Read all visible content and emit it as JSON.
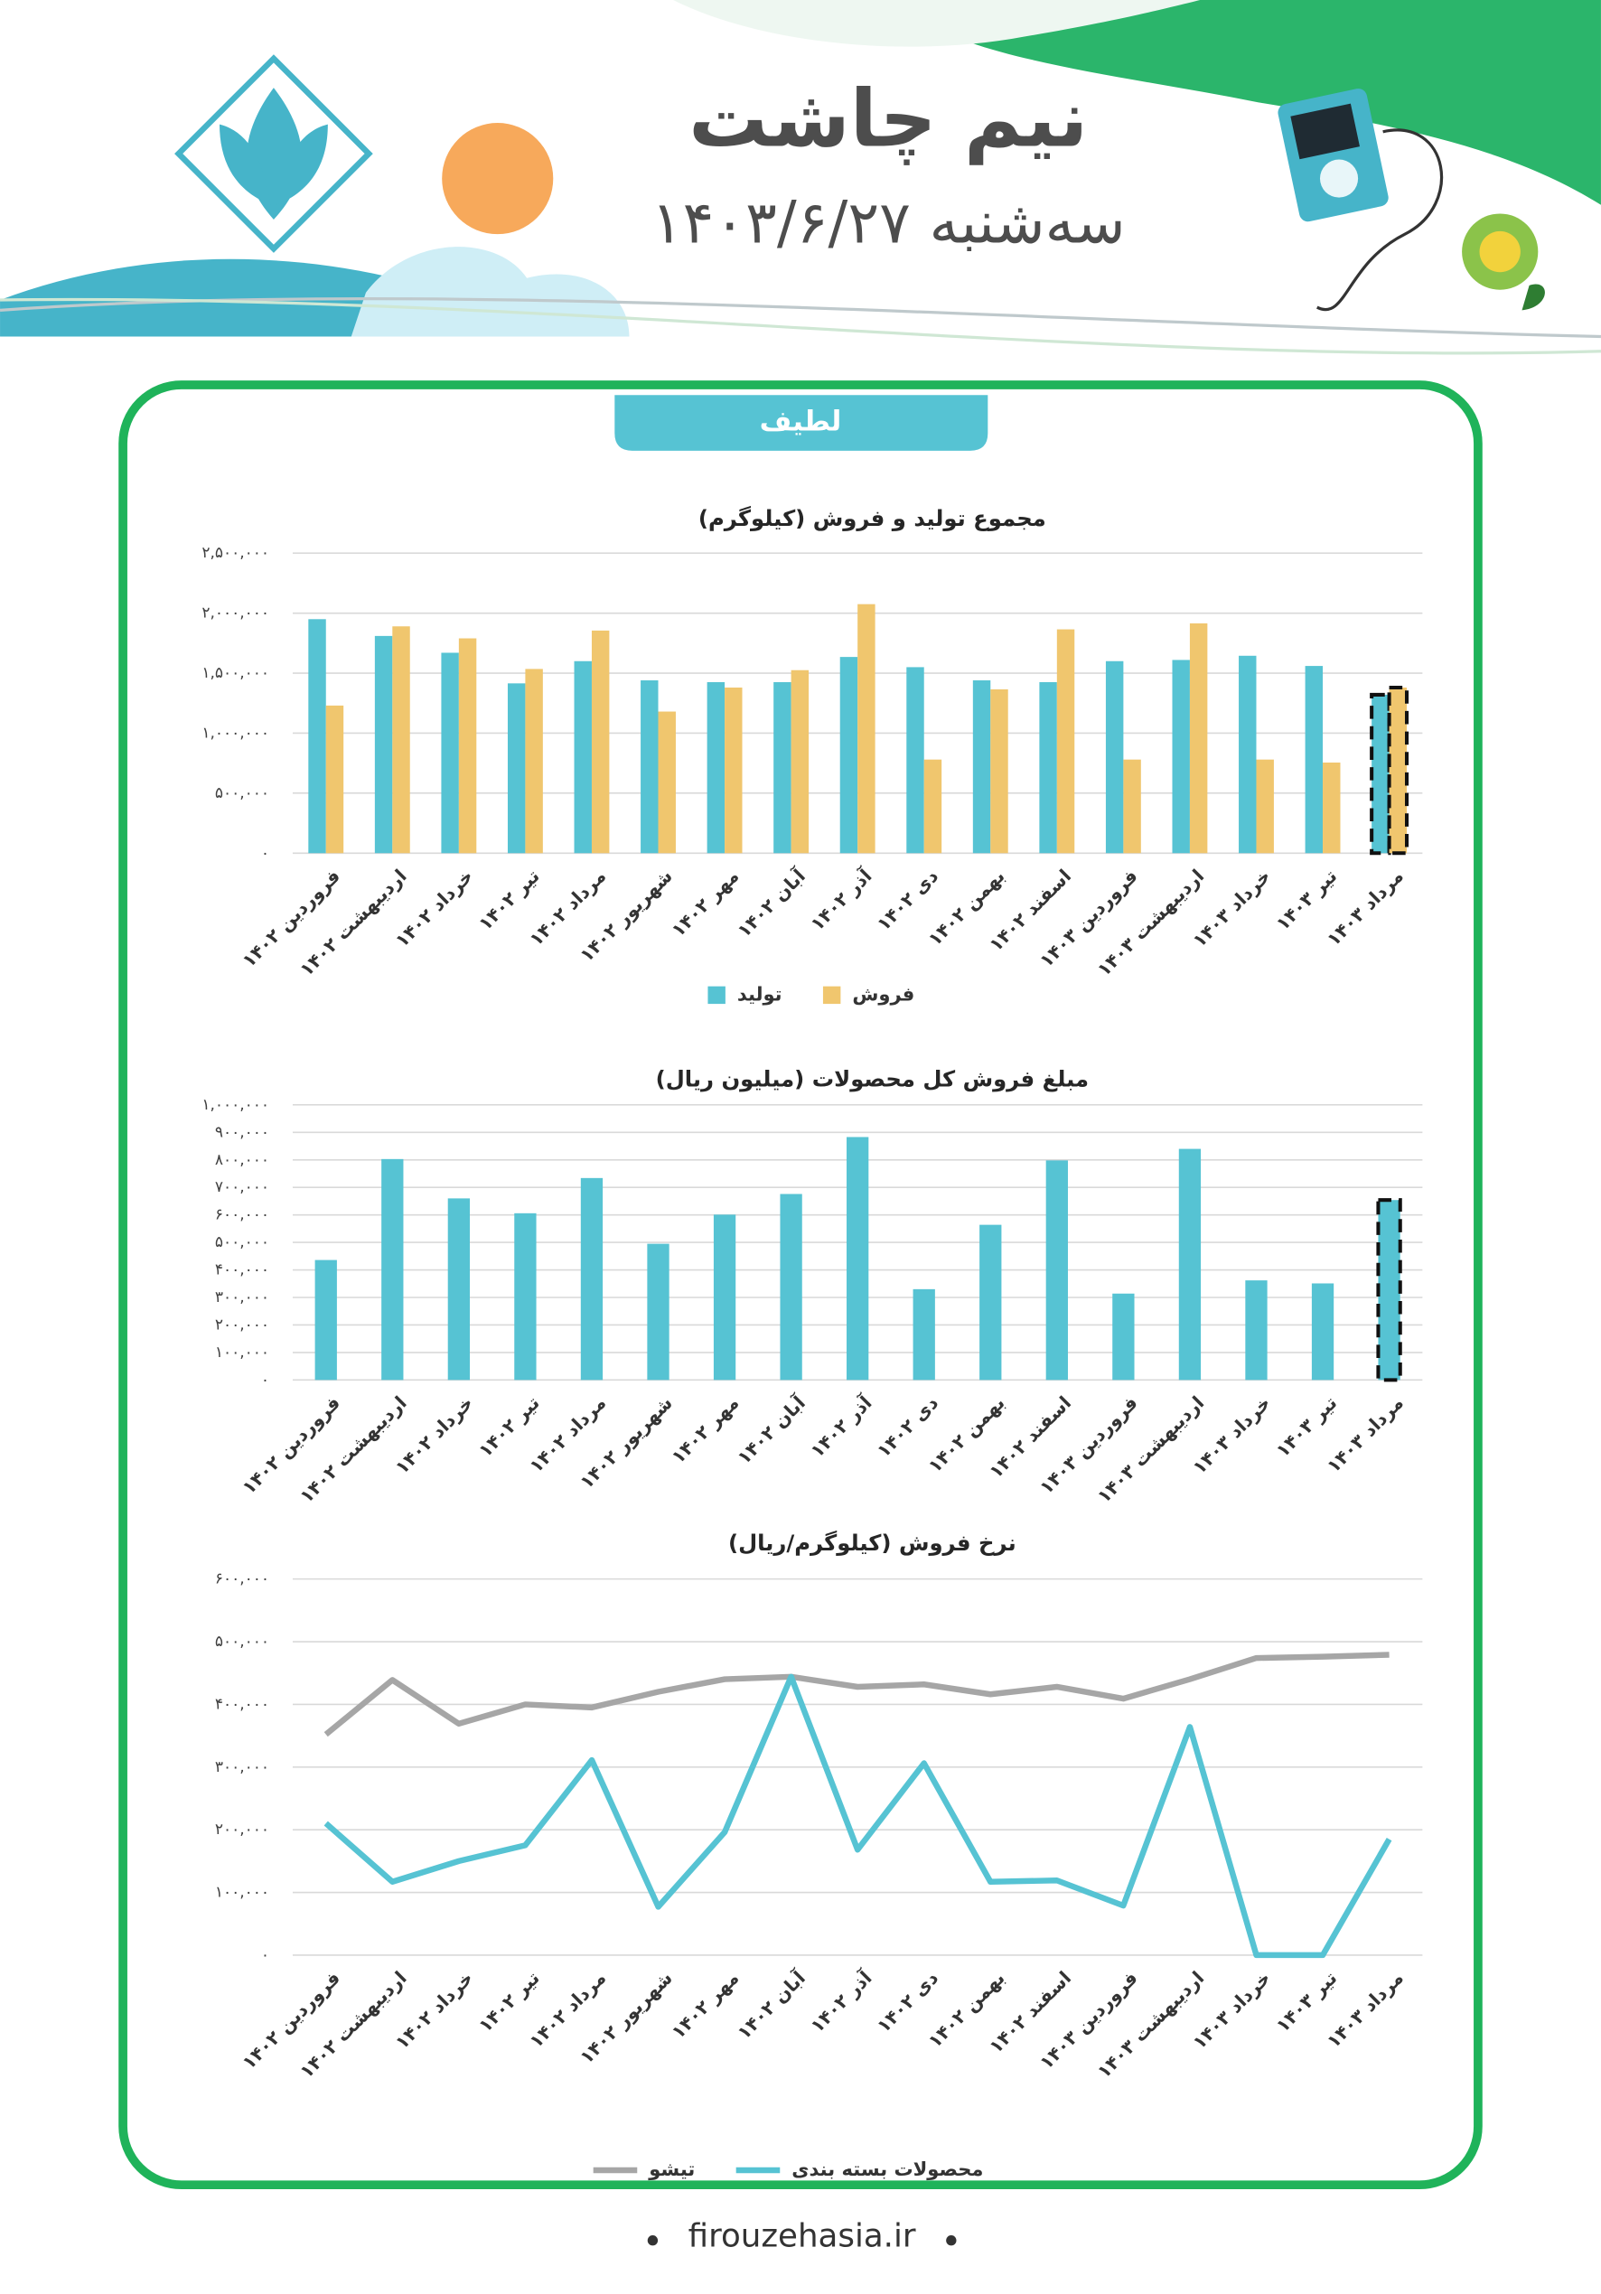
{
  "header": {
    "title": "نیم چاشت",
    "date": "سه‌شنبه ۱۴۰۳/۶/۲۷"
  },
  "section": "لطیف",
  "footer": "firouzehasia.ir",
  "chart_data": [
    {
      "type": "bar",
      "title": "مجموع تولید و فروش (کیلوگرم)",
      "categories": [
        "فروردین ۱۴۰۲",
        "اردیبهشت ۱۴۰۲",
        "خرداد ۱۴۰۲",
        "تیر ۱۴۰۲",
        "مرداد ۱۴۰۲",
        "شهریور ۱۴۰۲",
        "مهر ۱۴۰۲",
        "آبان ۱۴۰۲",
        "آذر ۱۴۰۲",
        "دی ۱۴۰۲",
        "بهمن ۱۴۰۲",
        "اسفند ۱۴۰۲",
        "فروردین ۱۴۰۳",
        "اردیبهشت ۱۴۰۳",
        "خرداد ۱۴۰۳",
        "تیر ۱۴۰۳",
        "مرداد ۱۴۰۳"
      ],
      "series": [
        {
          "name": "تولید",
          "color": "#56c3d3",
          "values": [
            1950000,
            1810000,
            1670000,
            1415000,
            1600000,
            1440000,
            1425000,
            1425000,
            1635000,
            1550000,
            1440000,
            1425000,
            1600000,
            1610000,
            1645000,
            1560000,
            1320000
          ]
        },
        {
          "name": "فروش",
          "color": "#f0c66e",
          "values": [
            1230000,
            1890000,
            1790000,
            1535000,
            1855000,
            1180000,
            1380000,
            1525000,
            2075000,
            780000,
            1365000,
            1865000,
            780000,
            1915000,
            780000,
            755000,
            1380000
          ]
        }
      ],
      "ylim": [
        0,
        2500000
      ],
      "yticks": [
        {
          "value": 0,
          "label": "۰"
        },
        {
          "value": 500000,
          "label": "۵۰۰,۰۰۰"
        },
        {
          "value": 1000000,
          "label": "۱,۰۰۰,۰۰۰"
        },
        {
          "value": 1500000,
          "label": "۱,۵۰۰,۰۰۰"
        },
        {
          "value": 2000000,
          "label": "۲,۰۰۰,۰۰۰"
        },
        {
          "value": 2500000,
          "label": "۲,۵۰۰,۰۰۰"
        }
      ],
      "grid": true,
      "last_bar_dashed": true
    },
    {
      "type": "bar",
      "title": "مبلغ فروش کل محصولات (میلیون ریال)",
      "categories": [
        "فروردین ۱۴۰۲",
        "اردیبهشت ۱۴۰۲",
        "خرداد ۱۴۰۲",
        "تیر ۱۴۰۲",
        "مرداد ۱۴۰۲",
        "شهریور ۱۴۰۲",
        "مهر ۱۴۰۲",
        "آبان ۱۴۰۲",
        "آذر ۱۴۰۲",
        "دی ۱۴۰۲",
        "بهمن ۱۴۰۲",
        "اسفند ۱۴۰۲",
        "فروردین ۱۴۰۳",
        "اردیبهشت ۱۴۰۳",
        "خرداد ۱۴۰۳",
        "تیر ۱۴۰۳",
        "مرداد ۱۴۰۳"
      ],
      "values": [
        436000,
        803000,
        660000,
        606000,
        734000,
        495000,
        601000,
        676000,
        883000,
        330000,
        564000,
        798000,
        314000,
        840000,
        362000,
        351000,
        654000
      ],
      "color": "#56c3d3",
      "ylim": [
        0,
        1000000
      ],
      "yticks": [
        {
          "value": 0,
          "label": "۰"
        },
        {
          "value": 100000,
          "label": "۱۰۰,۰۰۰"
        },
        {
          "value": 200000,
          "label": "۲۰۰,۰۰۰"
        },
        {
          "value": 300000,
          "label": "۳۰۰,۰۰۰"
        },
        {
          "value": 400000,
          "label": "۴۰۰,۰۰۰"
        },
        {
          "value": 500000,
          "label": "۵۰۰,۰۰۰"
        },
        {
          "value": 600000,
          "label": "۶۰۰,۰۰۰"
        },
        {
          "value": 700000,
          "label": "۷۰۰,۰۰۰"
        },
        {
          "value": 800000,
          "label": "۸۰۰,۰۰۰"
        },
        {
          "value": 900000,
          "label": "۹۰۰,۰۰۰"
        },
        {
          "value": 1000000,
          "label": "۱,۰۰۰,۰۰۰"
        }
      ],
      "grid": true,
      "last_bar_dashed": true
    },
    {
      "type": "line",
      "title": "نرخ فروش (کیلوگرم/ریال)",
      "categories": [
        "فروردین ۱۴۰۲",
        "اردیبهشت ۱۴۰۲",
        "خرداد ۱۴۰۲",
        "تیر ۱۴۰۲",
        "مرداد ۱۴۰۲",
        "شهریور ۱۴۰۲",
        "مهر ۱۴۰۲",
        "آبان ۱۴۰۲",
        "آذر ۱۴۰۲",
        "دی ۱۴۰۲",
        "بهمن ۱۴۰۲",
        "اسفند ۱۴۰۲",
        "فروردین ۱۴۰۳",
        "اردیبهشت ۱۴۰۳",
        "خرداد ۱۴۰۳",
        "تیر ۱۴۰۳",
        "مرداد ۱۴۰۳"
      ],
      "series": [
        {
          "name": "تیشو",
          "color": "#a6a6a6",
          "values": [
            352000,
            439000,
            369000,
            400000,
            395000,
            420000,
            440000,
            444000,
            428000,
            432000,
            416000,
            428000,
            409000,
            440000,
            474000,
            476000,
            479000
          ]
        },
        {
          "name": "محصولات بسته بندی",
          "color": "#56c3d3",
          "values": [
            210000,
            117000,
            150000,
            175000,
            311000,
            77000,
            196000,
            444000,
            168000,
            306000,
            117000,
            119000,
            79000,
            364000,
            0,
            0,
            185000
          ]
        }
      ],
      "ylim": [
        0,
        600000
      ],
      "yticks": [
        {
          "value": 0,
          "label": "۰"
        },
        {
          "value": 100000,
          "label": "۱۰۰,۰۰۰"
        },
        {
          "value": 200000,
          "label": "۲۰۰,۰۰۰"
        },
        {
          "value": 300000,
          "label": "۳۰۰,۰۰۰"
        },
        {
          "value": 400000,
          "label": "۴۰۰,۰۰۰"
        },
        {
          "value": 500000,
          "label": "۵۰۰,۰۰۰"
        },
        {
          "value": 600000,
          "label": "۶۰۰,۰۰۰"
        }
      ],
      "grid": true
    }
  ]
}
